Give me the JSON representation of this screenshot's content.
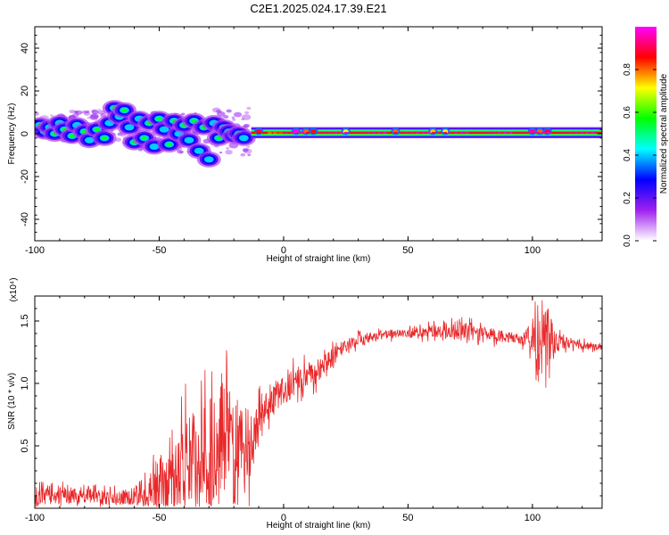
{
  "title": "C2E1.2025.024.17.39.E21",
  "colors": {
    "snr_line": "#e8282a",
    "colormap": [
      "#ffffff",
      "#a020f0",
      "#0000ff",
      "#00ffff",
      "#00ff00",
      "#ffff00",
      "#ff0000",
      "#ff00ff"
    ]
  },
  "chart_data": [
    {
      "type": "heatmap",
      "title": "C2E1.2025.024.17.39.E21",
      "xlabel": "Height of straight line (km)",
      "ylabel": "Frequency (Hz)",
      "xlim": [
        -100,
        128
      ],
      "ylim": [
        -50,
        50
      ],
      "xticks": [
        "-100",
        "-50",
        "0",
        "50",
        "100"
      ],
      "xtick_values": [
        -100,
        -50,
        0,
        50,
        100
      ],
      "yticks": [
        "-40",
        "-20",
        "0",
        "20",
        "40"
      ],
      "ytick_values": [
        -40,
        -20,
        0,
        20,
        40
      ],
      "colorbar": {
        "label": "Normalized spectral amplitude",
        "range": [
          0,
          1
        ],
        "ticks": [
          "0.0",
          "0.2",
          "0.4",
          "0.6",
          "0.8"
        ],
        "tick_values": [
          0.0,
          0.2,
          0.4,
          0.6,
          0.8
        ]
      },
      "ridge": {
        "from_x": -13,
        "to_x": 128,
        "frequency": 0.5,
        "halfwidth": 1.6
      },
      "blobs": [
        [
          -98,
          4,
          0.45
        ],
        [
          -96,
          1,
          0.55
        ],
        [
          -94,
          3,
          0.35
        ],
        [
          -92,
          0,
          0.6
        ],
        [
          -90,
          5,
          0.4
        ],
        [
          -88,
          2,
          0.5
        ],
        [
          -85,
          -1,
          0.45
        ],
        [
          -83,
          4,
          0.35
        ],
        [
          -80,
          1,
          0.6
        ],
        [
          -78,
          -3,
          0.4
        ],
        [
          -75,
          2,
          0.5
        ],
        [
          -72,
          -2,
          0.45
        ],
        [
          -70,
          5,
          0.35
        ],
        [
          -68,
          12,
          0.5
        ],
        [
          -66,
          8,
          0.4
        ],
        [
          -64,
          11,
          0.45
        ],
        [
          -62,
          3,
          0.35
        ],
        [
          -60,
          -4,
          0.5
        ],
        [
          -58,
          7,
          0.4
        ],
        [
          -56,
          -2,
          0.45
        ],
        [
          -54,
          5,
          0.5
        ],
        [
          -52,
          -6,
          0.35
        ],
        [
          -50,
          7,
          0.55
        ],
        [
          -48,
          2,
          0.4
        ],
        [
          -46,
          -5,
          0.45
        ],
        [
          -44,
          6,
          0.5
        ],
        [
          -42,
          0,
          0.35
        ],
        [
          -40,
          4,
          0.45
        ],
        [
          -38,
          -3,
          0.4
        ],
        [
          -36,
          6,
          0.5
        ],
        [
          -34,
          -8,
          0.35
        ],
        [
          -32,
          3,
          0.45
        ],
        [
          -30,
          -12,
          0.4
        ],
        [
          -28,
          5,
          0.35
        ],
        [
          -26,
          -2,
          0.45
        ],
        [
          -24,
          3,
          0.4
        ],
        [
          -22,
          1,
          0.5
        ],
        [
          -20,
          -1,
          0.35
        ],
        [
          -18,
          0,
          0.45
        ],
        [
          -16,
          -2,
          0.3
        ]
      ],
      "ridge_bumps": [
        [
          -10,
          0.9
        ],
        [
          5,
          1.0
        ],
        [
          9,
          0.8
        ],
        [
          12,
          0.85
        ],
        [
          25,
          0.7
        ],
        [
          45,
          0.8
        ],
        [
          60,
          0.75
        ],
        [
          65,
          0.7
        ],
        [
          100,
          0.95
        ],
        [
          103,
          0.8
        ],
        [
          106,
          0.9
        ]
      ]
    },
    {
      "type": "line",
      "xlabel": "Height of straight line (km)",
      "ylabel": "SNR (10 * v/v)",
      "y_multiplier": "(x10⁴)",
      "xlim": [
        -100,
        128
      ],
      "ylim": [
        0,
        1.7
      ],
      "xticks": [
        "-100",
        "-50",
        "0",
        "50",
        "100"
      ],
      "xtick_values": [
        -100,
        -50,
        0,
        50,
        100
      ],
      "yticks": [
        "0.5",
        "1.0",
        "1.5"
      ],
      "ytick_values": [
        0.5,
        1.0,
        1.5
      ],
      "series": [
        {
          "x": [
            -100,
            -90,
            -80,
            -70,
            -60,
            -55,
            -50,
            -45,
            -40,
            -35,
            -30,
            -25,
            -20,
            -15,
            -12,
            -10,
            -5,
            0,
            5,
            10,
            15,
            20,
            25,
            30,
            35,
            40,
            45,
            50,
            55,
            60,
            65,
            70,
            75,
            80,
            85,
            90,
            95,
            100,
            103,
            106,
            110,
            115,
            120,
            128
          ],
          "values": [
            0.09,
            0.1,
            0.11,
            0.08,
            0.1,
            0.12,
            0.18,
            0.25,
            0.35,
            0.42,
            0.48,
            0.55,
            0.5,
            0.52,
            0.55,
            0.75,
            0.85,
            0.95,
            1.02,
            1.06,
            1.12,
            1.22,
            1.3,
            1.35,
            1.37,
            1.39,
            1.4,
            1.4,
            1.41,
            1.42,
            1.43,
            1.42,
            1.41,
            1.39,
            1.38,
            1.37,
            1.36,
            1.36,
            1.3,
            1.36,
            1.33,
            1.32,
            1.3,
            1.29
          ],
          "noise": [
            0.08,
            0.08,
            0.07,
            0.06,
            0.08,
            0.18,
            0.25,
            0.35,
            0.4,
            0.45,
            0.5,
            0.5,
            0.45,
            0.35,
            0.3,
            0.14,
            0.14,
            0.14,
            0.12,
            0.12,
            0.1,
            0.08,
            0.06,
            0.05,
            0.05,
            0.04,
            0.04,
            0.04,
            0.05,
            0.06,
            0.07,
            0.08,
            0.08,
            0.06,
            0.06,
            0.05,
            0.05,
            0.12,
            0.45,
            0.3,
            0.08,
            0.04,
            0.04,
            0.03
          ]
        }
      ]
    }
  ]
}
